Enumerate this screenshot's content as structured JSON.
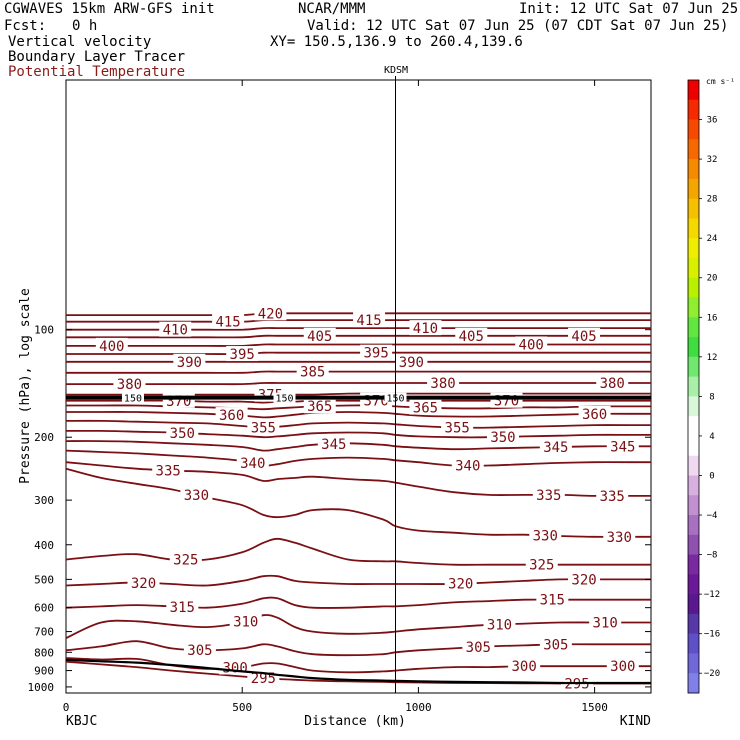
{
  "header": {
    "model": "CGWAVES 15km ARW-GFS init",
    "org": "NCAR/MMM",
    "init": "Init: 12 UTC Sat 07 Jun 25",
    "fcst_label": "Fcst:",
    "fcst_value": "0 h",
    "valid": "Valid: 12 UTC Sat 07 Jun 25 (07 CDT Sat 07 Jun 25)",
    "field1": "Vertical velocity",
    "xy": "XY= 150.5,136.9 to 260.4,139.6",
    "field2": "Boundary Layer Tracer",
    "field3": "Potential Temperature"
  },
  "colors": {
    "theta": "#7a0f14",
    "field3_text": "#8b1a1a",
    "terrain": "#000000",
    "tropopause": "#000000"
  },
  "chart_data": {
    "type": "line",
    "title": "",
    "station_mid": "KDSM",
    "station_left": "KBJC",
    "station_right": "KIND",
    "xlabel": "Distance (km)",
    "ylabel": "Pressure (hPa), log scale",
    "x_ticks": [
      0,
      500,
      1000,
      1500
    ],
    "y_ticks": [
      100,
      200,
      300,
      400,
      500,
      600,
      700,
      800,
      900,
      1000
    ],
    "xlim": [
      0,
      1660
    ],
    "ylim": [
      1040,
      20
    ],
    "y_scale": "log",
    "section_marker_km": 935,
    "tropopause_label": "150",
    "tropopause_label_km": [
      190,
      620,
      935
    ],
    "x": [
      0,
      100,
      200,
      300,
      400,
      500,
      560,
      600,
      650,
      700,
      800,
      900,
      935,
      1000,
      1100,
      1200,
      1300,
      1400,
      1500,
      1600,
      1660
    ],
    "isentrope_unit": "K",
    "isentropes": [
      {
        "theta": 295,
        "p": [
          850,
          865,
          880,
          900,
          918,
          935,
          945,
          950,
          955,
          960,
          965,
          968,
          970,
          972,
          975,
          976,
          977,
          978,
          978,
          978,
          978
        ]
      },
      {
        "theta": 300,
        "p": [
          830,
          838,
          835,
          870,
          890,
          880,
          860,
          860,
          880,
          900,
          910,
          905,
          900,
          890,
          880,
          880,
          875,
          875,
          875,
          875,
          875
        ]
      },
      {
        "theta": 305,
        "p": [
          790,
          770,
          745,
          780,
          790,
          780,
          760,
          770,
          795,
          810,
          815,
          810,
          800,
          790,
          780,
          770,
          765,
          760,
          760,
          760,
          760
        ]
      },
      {
        "theta": 310,
        "p": [
          730,
          660,
          655,
          670,
          680,
          660,
          630,
          640,
          680,
          700,
          710,
          705,
          700,
          690,
          680,
          670,
          665,
          660,
          660,
          660,
          660
        ]
      },
      {
        "theta": 315,
        "p": [
          600,
          595,
          590,
          595,
          600,
          585,
          565,
          565,
          590,
          600,
          600,
          595,
          595,
          590,
          580,
          575,
          570,
          570,
          570,
          570,
          570
        ]
      },
      {
        "theta": 320,
        "p": [
          520,
          515,
          510,
          515,
          520,
          505,
          490,
          490,
          505,
          510,
          515,
          515,
          515,
          515,
          515,
          510,
          505,
          500,
          500,
          500,
          500
        ]
      },
      {
        "theta": 325,
        "p": [
          440,
          430,
          425,
          440,
          440,
          420,
          395,
          385,
          395,
          410,
          440,
          445,
          445,
          450,
          455,
          455,
          455,
          455,
          455,
          455,
          455
        ]
      },
      {
        "theta": 330,
        "p": [
          245,
          260,
          270,
          280,
          295,
          310,
          330,
          335,
          330,
          320,
          320,
          340,
          355,
          365,
          370,
          375,
          375,
          378,
          380,
          380,
          380
        ]
      },
      {
        "theta": 335,
        "p": [
          235,
          240,
          245,
          248,
          250,
          255,
          265,
          262,
          260,
          258,
          262,
          265,
          268,
          275,
          285,
          290,
          290,
          290,
          292,
          292,
          292
        ]
      },
      {
        "theta": 340,
        "p": [
          218,
          220,
          222,
          225,
          228,
          233,
          240,
          238,
          233,
          230,
          228,
          230,
          232,
          235,
          240,
          240,
          238,
          236,
          235,
          235,
          235
        ]
      },
      {
        "theta": 345,
        "p": [
          205,
          205,
          206,
          208,
          210,
          213,
          218,
          216,
          213,
          210,
          208,
          210,
          212,
          214,
          216,
          215,
          214,
          213,
          212,
          212,
          212
        ]
      },
      {
        "theta": 350,
        "p": [
          192,
          192,
          193,
          194,
          196,
          198,
          200,
          199,
          197,
          195,
          194,
          195,
          197,
          199,
          200,
          200,
          199,
          198,
          197,
          197,
          197
        ]
      },
      {
        "theta": 355,
        "p": [
          180,
          180,
          181,
          182,
          183,
          186,
          188,
          187,
          185,
          183,
          182,
          183,
          184,
          186,
          188,
          188,
          187,
          186,
          185,
          185,
          185
        ]
      },
      {
        "theta": 360,
        "p": [
          170,
          170,
          170,
          171,
          172,
          174,
          176,
          175,
          173,
          171,
          170,
          171,
          172,
          174,
          175,
          175,
          174,
          173,
          172,
          172,
          172
        ]
      },
      {
        "theta": 365,
        "p": [
          163,
          163,
          163,
          164,
          165,
          166,
          167,
          166,
          165,
          164,
          163,
          163,
          164,
          165,
          166,
          166,
          165,
          165,
          164,
          164,
          164
        ]
      },
      {
        "theta": 370,
        "p": [
          158,
          158,
          158,
          158,
          159,
          159,
          160,
          159,
          159,
          158,
          158,
          158,
          158,
          158,
          158,
          158,
          158,
          158,
          158,
          158,
          158
        ]
      },
      {
        "theta": 375,
        "p": [
          152,
          152,
          152,
          152,
          152,
          152,
          152,
          152,
          152,
          152,
          151,
          151,
          151,
          151,
          151,
          151,
          151,
          151,
          151,
          151,
          151
        ]
      },
      {
        "theta": 380,
        "p": [
          142,
          142,
          142,
          142,
          142,
          142,
          141,
          141,
          141,
          141,
          141,
          141,
          141,
          141,
          141,
          141,
          141,
          141,
          141,
          141,
          141
        ]
      },
      {
        "theta": 385,
        "p": [
          132,
          132,
          132,
          132,
          132,
          132,
          131,
          131,
          131,
          131,
          131,
          131,
          131,
          131,
          131,
          131,
          131,
          131,
          131,
          131,
          131
        ]
      },
      {
        "theta": 390,
        "p": [
          123,
          123,
          123,
          123,
          123,
          123,
          123,
          123,
          123,
          123,
          123,
          123,
          123,
          123,
          123,
          123,
          123,
          123,
          123,
          123,
          123
        ]
      },
      {
        "theta": 395,
        "p": [
          117,
          117,
          117,
          117,
          117,
          117,
          116,
          116,
          116,
          116,
          116,
          116,
          116,
          116,
          116,
          116,
          116,
          116,
          116,
          116,
          116
        ]
      },
      {
        "theta": 400,
        "p": [
          111,
          111,
          111,
          111,
          111,
          111,
          110,
          110,
          110,
          110,
          110,
          110,
          110,
          110,
          110,
          110,
          110,
          110,
          110,
          110,
          110
        ]
      },
      {
        "theta": 405,
        "p": [
          105,
          105,
          105,
          105,
          105,
          105,
          104,
          104,
          104,
          104,
          104,
          104,
          104,
          104,
          104,
          104,
          104,
          104,
          104,
          104,
          104
        ]
      },
      {
        "theta": 410,
        "p": [
          100,
          100,
          100,
          100,
          100,
          100,
          99,
          99,
          99,
          99,
          99,
          99,
          99,
          99,
          99,
          99,
          99,
          99,
          99,
          99,
          99
        ]
      },
      {
        "theta": 415,
        "p": [
          95,
          95,
          95,
          95,
          95,
          95,
          94,
          94,
          94,
          94,
          94,
          94,
          94,
          94,
          94,
          94,
          94,
          94,
          94,
          94,
          94
        ]
      },
      {
        "theta": 420,
        "p": [
          91,
          91,
          91,
          91,
          91,
          91,
          90,
          90,
          90,
          90,
          90,
          90,
          90,
          90,
          90,
          90,
          90,
          90,
          90,
          90,
          90
        ]
      }
    ],
    "isentrope_labels": [
      {
        "theta": 295,
        "x": [
          560,
          1450
        ]
      },
      {
        "theta": 300,
        "x": [
          480,
          1300,
          1580
        ]
      },
      {
        "theta": 305,
        "x": [
          380,
          1170,
          1390
        ]
      },
      {
        "theta": 310,
        "x": [
          510,
          1230,
          1530
        ]
      },
      {
        "theta": 315,
        "x": [
          330,
          1380
        ]
      },
      {
        "theta": 320,
        "x": [
          220,
          1120,
          1470
        ]
      },
      {
        "theta": 325,
        "x": [
          340,
          1350
        ]
      },
      {
        "theta": 330,
        "x": [
          370,
          1360,
          1570
        ]
      },
      {
        "theta": 335,
        "x": [
          290,
          1370,
          1550
        ]
      },
      {
        "theta": 340,
        "x": [
          530,
          1140
        ]
      },
      {
        "theta": 345,
        "x": [
          760,
          1390,
          1580
        ]
      },
      {
        "theta": 350,
        "x": [
          330,
          1240
        ]
      },
      {
        "theta": 355,
        "x": [
          560,
          1110
        ]
      },
      {
        "theta": 360,
        "x": [
          470,
          1500
        ]
      },
      {
        "theta": 365,
        "x": [
          720,
          1020
        ]
      },
      {
        "theta": 370,
        "x": [
          320,
          880,
          1250
        ]
      },
      {
        "theta": 375,
        "x": [
          580
        ]
      },
      {
        "theta": 380,
        "x": [
          180,
          1070,
          1550
        ]
      },
      {
        "theta": 385,
        "x": [
          700
        ]
      },
      {
        "theta": 390,
        "x": [
          350,
          980
        ]
      },
      {
        "theta": 395,
        "x": [
          500,
          880
        ]
      },
      {
        "theta": 400,
        "x": [
          130,
          1320
        ]
      },
      {
        "theta": 405,
        "x": [
          720,
          1150,
          1470
        ]
      },
      {
        "theta": 410,
        "x": [
          310,
          1020
        ]
      },
      {
        "theta": 415,
        "x": [
          460,
          860
        ]
      },
      {
        "theta": 420,
        "x": [
          580
        ]
      }
    ],
    "tropopause_p": 155,
    "terrain_p": [
      840,
      848,
      855,
      868,
      885,
      905,
      915,
      925,
      935,
      945,
      955,
      960,
      962,
      965,
      968,
      970,
      972,
      975,
      975,
      975,
      975
    ],
    "colorbar": {
      "unit": "cm s⁻¹",
      "labels": [
        36,
        32,
        28,
        24,
        20,
        16,
        12,
        8,
        4,
        0,
        -4,
        -8,
        -12,
        -16,
        -20
      ],
      "colors": [
        "#ee0000",
        "#f52a00",
        "#f54a00",
        "#f56a00",
        "#f58a00",
        "#f5a500",
        "#f5c000",
        "#f5d800",
        "#f0ee00",
        "#d8f000",
        "#b8f000",
        "#90ee30",
        "#60e840",
        "#40dd40",
        "#70e870",
        "#a8f0a8",
        "#d8f8d8",
        "#ffffff",
        "#ffffff",
        "#f0d8f0",
        "#d8b0e0",
        "#c090d0",
        "#a870c0",
        "#9050b0",
        "#7a2aa0",
        "#6a1a98",
        "#5a1890",
        "#5838a8",
        "#6050c8",
        "#7068d8",
        "#8080e8"
      ]
    }
  }
}
